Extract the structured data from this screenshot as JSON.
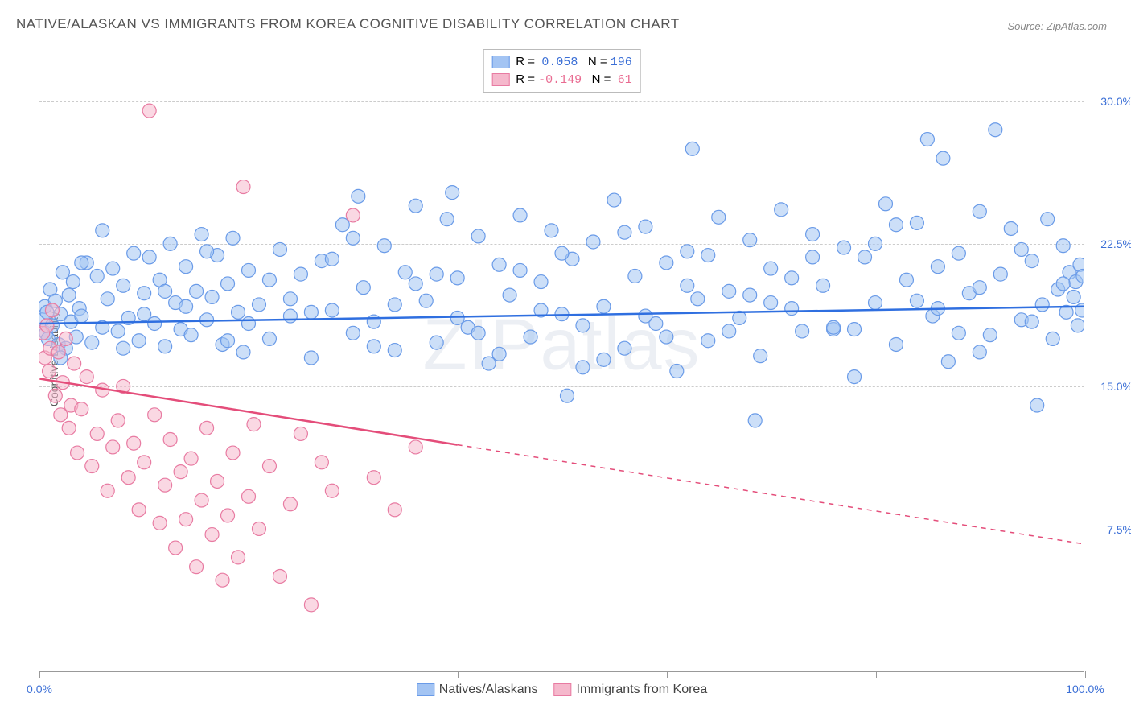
{
  "title": "NATIVE/ALASKAN VS IMMIGRANTS FROM KOREA COGNITIVE DISABILITY CORRELATION CHART",
  "source": "Source: ZipAtlas.com",
  "ylabel": "Cognitive Disability",
  "watermark": "ZIPatlas",
  "chart": {
    "type": "scatter",
    "xlim": [
      0,
      100
    ],
    "ylim": [
      0,
      33
    ],
    "y_ticks": [
      7.5,
      15.0,
      22.5,
      30.0
    ],
    "y_tick_labels": [
      "7.5%",
      "15.0%",
      "22.5%",
      "30.0%"
    ],
    "x_ticks": [
      0,
      20,
      40,
      60,
      80,
      100
    ],
    "x_tick_labels": [
      "0.0%",
      "",
      "",
      "",
      "",
      "100.0%"
    ],
    "background_color": "#ffffff",
    "grid_color": "#cccccc",
    "axis_color": "#999999",
    "marker_radius": 8.5,
    "marker_opacity": 0.55
  },
  "series": [
    {
      "name": "Natives/Alaskans",
      "color_fill": "#a3c4f3",
      "color_stroke": "#6a9be8",
      "r_value": "0.058",
      "n_value": "196",
      "trend": {
        "y_at_x0": 18.3,
        "y_at_x100": 19.2,
        "solid_until_x": 100,
        "color": "#2f6fe0",
        "width": 2.5
      },
      "points": [
        [
          0.3,
          18.5
        ],
        [
          0.5,
          19.2
        ],
        [
          0.6,
          17.8
        ],
        [
          0.7,
          18.9
        ],
        [
          0.8,
          17.5
        ],
        [
          1.0,
          20.1
        ],
        [
          1.2,
          18.2
        ],
        [
          1.5,
          19.5
        ],
        [
          1.8,
          17.2
        ],
        [
          2.0,
          18.8
        ],
        [
          2.2,
          21.0
        ],
        [
          2.5,
          17.0
        ],
        [
          2.8,
          19.8
        ],
        [
          3.0,
          18.4
        ],
        [
          3.2,
          20.5
        ],
        [
          3.5,
          17.6
        ],
        [
          3.8,
          19.1
        ],
        [
          4.0,
          18.7
        ],
        [
          4.5,
          21.5
        ],
        [
          5.0,
          17.3
        ],
        [
          5.5,
          20.8
        ],
        [
          6.0,
          18.1
        ],
        [
          6.5,
          19.6
        ],
        [
          7.0,
          21.2
        ],
        [
          7.5,
          17.9
        ],
        [
          8.0,
          20.3
        ],
        [
          8.5,
          18.6
        ],
        [
          9.0,
          22.0
        ],
        [
          9.5,
          17.4
        ],
        [
          10.0,
          19.9
        ],
        [
          10.5,
          21.8
        ],
        [
          11.0,
          18.3
        ],
        [
          11.5,
          20.6
        ],
        [
          12.0,
          17.1
        ],
        [
          12.5,
          22.5
        ],
        [
          13.0,
          19.4
        ],
        [
          13.5,
          18.0
        ],
        [
          14.0,
          21.3
        ],
        [
          14.5,
          17.7
        ],
        [
          15.0,
          20.0
        ],
        [
          15.5,
          23.0
        ],
        [
          16.0,
          18.5
        ],
        [
          16.5,
          19.7
        ],
        [
          17.0,
          21.9
        ],
        [
          17.5,
          17.2
        ],
        [
          18.0,
          20.4
        ],
        [
          18.5,
          22.8
        ],
        [
          19.0,
          18.9
        ],
        [
          19.5,
          16.8
        ],
        [
          20.0,
          21.1
        ],
        [
          21.0,
          19.3
        ],
        [
          22.0,
          17.5
        ],
        [
          23.0,
          22.2
        ],
        [
          24.0,
          18.7
        ],
        [
          25.0,
          20.9
        ],
        [
          26.0,
          16.5
        ],
        [
          27.0,
          21.6
        ],
        [
          28.0,
          19.0
        ],
        [
          29.0,
          23.5
        ],
        [
          30.0,
          17.8
        ],
        [
          30.5,
          25.0
        ],
        [
          31.0,
          20.2
        ],
        [
          32.0,
          18.4
        ],
        [
          33.0,
          22.4
        ],
        [
          34.0,
          16.9
        ],
        [
          35.0,
          21.0
        ],
        [
          36.0,
          24.5
        ],
        [
          37.0,
          19.5
        ],
        [
          38.0,
          17.3
        ],
        [
          39.0,
          23.8
        ],
        [
          39.5,
          25.2
        ],
        [
          40.0,
          20.7
        ],
        [
          41.0,
          18.1
        ],
        [
          42.0,
          22.9
        ],
        [
          43.0,
          16.2
        ],
        [
          44.0,
          21.4
        ],
        [
          45.0,
          19.8
        ],
        [
          46.0,
          24.0
        ],
        [
          47.0,
          17.6
        ],
        [
          48.0,
          20.5
        ],
        [
          49.0,
          23.2
        ],
        [
          50.0,
          18.8
        ],
        [
          50.5,
          14.5
        ],
        [
          51.0,
          21.7
        ],
        [
          52.0,
          16.0
        ],
        [
          53.0,
          22.6
        ],
        [
          54.0,
          19.2
        ],
        [
          55.0,
          24.8
        ],
        [
          56.0,
          17.0
        ],
        [
          57.0,
          20.8
        ],
        [
          58.0,
          23.4
        ],
        [
          59.0,
          18.3
        ],
        [
          60.0,
          21.5
        ],
        [
          61.0,
          15.8
        ],
        [
          62.0,
          22.1
        ],
        [
          62.5,
          27.5
        ],
        [
          63.0,
          19.6
        ],
        [
          64.0,
          17.4
        ],
        [
          65.0,
          23.9
        ],
        [
          66.0,
          20.0
        ],
        [
          67.0,
          18.6
        ],
        [
          68.0,
          22.7
        ],
        [
          68.5,
          13.2
        ],
        [
          69.0,
          16.6
        ],
        [
          70.0,
          21.2
        ],
        [
          71.0,
          24.3
        ],
        [
          72.0,
          19.1
        ],
        [
          73.0,
          17.9
        ],
        [
          74.0,
          23.0
        ],
        [
          75.0,
          20.3
        ],
        [
          76.0,
          18.0
        ],
        [
          77.0,
          22.3
        ],
        [
          78.0,
          15.5
        ],
        [
          79.0,
          21.8
        ],
        [
          80.0,
          19.4
        ],
        [
          81.0,
          24.6
        ],
        [
          82.0,
          17.2
        ],
        [
          83.0,
          20.6
        ],
        [
          84.0,
          23.6
        ],
        [
          85.0,
          28.0
        ],
        [
          85.5,
          18.7
        ],
        [
          86.0,
          21.3
        ],
        [
          86.5,
          27.0
        ],
        [
          87.0,
          16.3
        ],
        [
          88.0,
          22.0
        ],
        [
          89.0,
          19.9
        ],
        [
          90.0,
          24.2
        ],
        [
          91.0,
          17.7
        ],
        [
          91.5,
          28.5
        ],
        [
          92.0,
          20.9
        ],
        [
          93.0,
          23.3
        ],
        [
          94.0,
          18.5
        ],
        [
          95.0,
          21.6
        ],
        [
          95.5,
          14.0
        ],
        [
          96.0,
          19.3
        ],
        [
          96.5,
          23.8
        ],
        [
          97.0,
          17.5
        ],
        [
          97.5,
          20.1
        ],
        [
          98.0,
          22.4
        ],
        [
          98.3,
          18.9
        ],
        [
          98.6,
          21.0
        ],
        [
          99.0,
          19.7
        ],
        [
          99.2,
          20.5
        ],
        [
          99.4,
          18.2
        ],
        [
          99.6,
          21.4
        ],
        [
          99.8,
          19.0
        ],
        [
          99.9,
          20.8
        ],
        [
          95.0,
          18.4
        ],
        [
          90.0,
          20.2
        ],
        [
          88.0,
          17.8
        ],
        [
          84.0,
          19.5
        ],
        [
          80.0,
          22.5
        ],
        [
          76.0,
          18.1
        ],
        [
          72.0,
          20.7
        ],
        [
          68.0,
          19.8
        ],
        [
          64.0,
          21.9
        ],
        [
          60.0,
          17.6
        ],
        [
          56.0,
          23.1
        ],
        [
          52.0,
          18.2
        ],
        [
          48.0,
          19.0
        ],
        [
          44.0,
          16.7
        ],
        [
          40.0,
          18.6
        ],
        [
          36.0,
          20.4
        ],
        [
          32.0,
          17.1
        ],
        [
          28.0,
          21.7
        ],
        [
          24.0,
          19.6
        ],
        [
          20.0,
          18.3
        ],
        [
          16.0,
          22.1
        ],
        [
          12.0,
          20.0
        ],
        [
          8.0,
          17.0
        ],
        [
          4.0,
          21.5
        ],
        [
          2.0,
          16.5
        ],
        [
          6.0,
          23.2
        ],
        [
          10.0,
          18.8
        ],
        [
          14.0,
          19.2
        ],
        [
          18.0,
          17.4
        ],
        [
          22.0,
          20.6
        ],
        [
          26.0,
          18.9
        ],
        [
          30.0,
          22.8
        ],
        [
          34.0,
          19.3
        ],
        [
          38.0,
          20.9
        ],
        [
          42.0,
          17.8
        ],
        [
          46.0,
          21.1
        ],
        [
          50.0,
          22.0
        ],
        [
          54.0,
          16.4
        ],
        [
          58.0,
          18.7
        ],
        [
          62.0,
          20.3
        ],
        [
          66.0,
          17.9
        ],
        [
          70.0,
          19.4
        ],
        [
          74.0,
          21.8
        ],
        [
          78.0,
          18.0
        ],
        [
          82.0,
          23.5
        ],
        [
          86.0,
          19.1
        ],
        [
          90.0,
          16.8
        ],
        [
          94.0,
          22.2
        ],
        [
          98.0,
          20.4
        ]
      ]
    },
    {
      "name": "Immigrants from Korea",
      "color_fill": "#f5b8cc",
      "color_stroke": "#e87ba2",
      "r_value": "-0.149",
      "n_value": "61",
      "trend": {
        "y_at_x0": 15.4,
        "y_at_x100": 6.7,
        "solid_until_x": 40,
        "color": "#e44d7a",
        "width": 2.5
      },
      "points": [
        [
          0.3,
          17.8
        ],
        [
          0.5,
          16.5
        ],
        [
          0.7,
          18.2
        ],
        [
          0.9,
          15.8
        ],
        [
          1.0,
          17.0
        ],
        [
          1.2,
          19.0
        ],
        [
          1.5,
          14.5
        ],
        [
          1.8,
          16.8
        ],
        [
          2.0,
          13.5
        ],
        [
          2.2,
          15.2
        ],
        [
          2.5,
          17.5
        ],
        [
          2.8,
          12.8
        ],
        [
          3.0,
          14.0
        ],
        [
          3.3,
          16.2
        ],
        [
          3.6,
          11.5
        ],
        [
          4.0,
          13.8
        ],
        [
          4.5,
          15.5
        ],
        [
          5.0,
          10.8
        ],
        [
          5.5,
          12.5
        ],
        [
          6.0,
          14.8
        ],
        [
          6.5,
          9.5
        ],
        [
          7.0,
          11.8
        ],
        [
          7.5,
          13.2
        ],
        [
          8.0,
          15.0
        ],
        [
          8.5,
          10.2
        ],
        [
          9.0,
          12.0
        ],
        [
          9.5,
          8.5
        ],
        [
          10.0,
          11.0
        ],
        [
          10.5,
          29.5
        ],
        [
          11.0,
          13.5
        ],
        [
          11.5,
          7.8
        ],
        [
          12.0,
          9.8
        ],
        [
          12.5,
          12.2
        ],
        [
          13.0,
          6.5
        ],
        [
          13.5,
          10.5
        ],
        [
          14.0,
          8.0
        ],
        [
          14.5,
          11.2
        ],
        [
          15.0,
          5.5
        ],
        [
          15.5,
          9.0
        ],
        [
          16.0,
          12.8
        ],
        [
          16.5,
          7.2
        ],
        [
          17.0,
          10.0
        ],
        [
          17.5,
          4.8
        ],
        [
          18.0,
          8.2
        ],
        [
          18.5,
          11.5
        ],
        [
          19.0,
          6.0
        ],
        [
          19.5,
          25.5
        ],
        [
          20.0,
          9.2
        ],
        [
          20.5,
          13.0
        ],
        [
          21.0,
          7.5
        ],
        [
          22.0,
          10.8
        ],
        [
          23.0,
          5.0
        ],
        [
          24.0,
          8.8
        ],
        [
          25.0,
          12.5
        ],
        [
          26.0,
          3.5
        ],
        [
          27.0,
          11.0
        ],
        [
          28.0,
          9.5
        ],
        [
          30.0,
          24.0
        ],
        [
          32.0,
          10.2
        ],
        [
          34.0,
          8.5
        ],
        [
          36.0,
          11.8
        ]
      ]
    }
  ],
  "legend_bottom": [
    {
      "label": "Natives/Alaskans",
      "fill": "#a3c4f3",
      "stroke": "#6a9be8"
    },
    {
      "label": "Immigrants from Korea",
      "fill": "#f5b8cc",
      "stroke": "#e87ba2"
    }
  ]
}
